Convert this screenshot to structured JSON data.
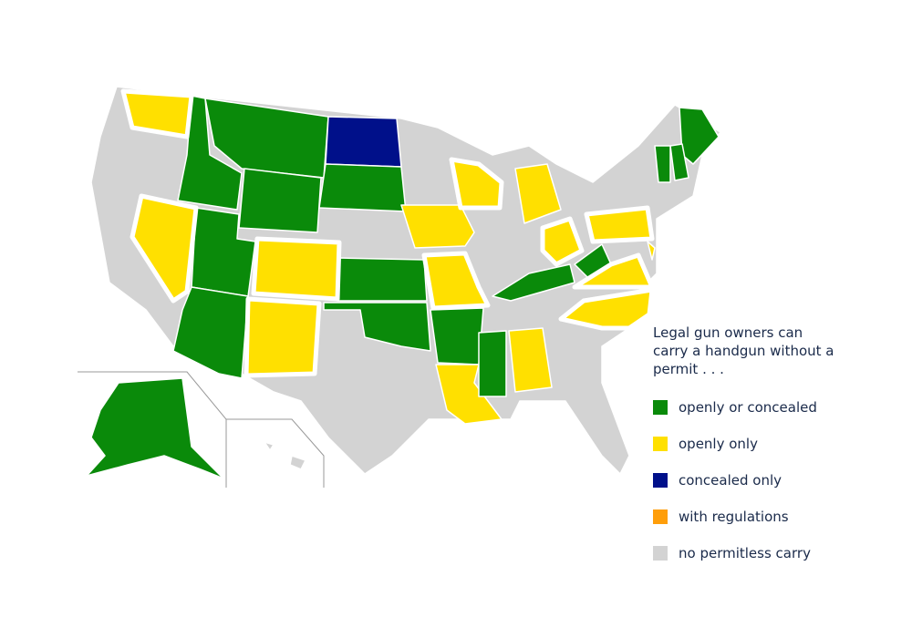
{
  "legend": {
    "title": "Legal gun owners can carry a handgun without a permit . . .",
    "entries": [
      {
        "label": "openly or concealed",
        "color": "#0a8a0a"
      },
      {
        "label": "openly only",
        "color": "#ffe000"
      },
      {
        "label": "concealed only",
        "color": "#00108a"
      },
      {
        "label": "with regulations",
        "color": "#ff9e0a"
      },
      {
        "label": "no permitless carry",
        "color": "#d3d3d3"
      }
    ]
  }
}
